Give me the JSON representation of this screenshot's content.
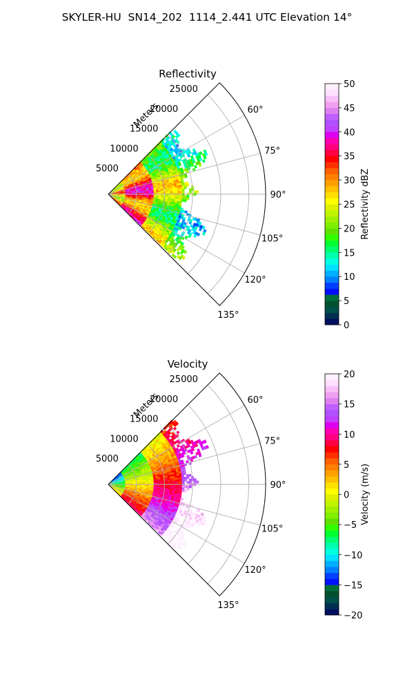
{
  "suptitle": "SKYLER-HU  SN14_202  1114_2.441 UTC Elevation 14°",
  "chart_data": [
    {
      "type": "heatmap",
      "projection": "polar-sector",
      "title": "Reflectivity",
      "radial_label": "Meters",
      "radial_ticks": [
        5000,
        10000,
        15000,
        20000,
        25000
      ],
      "radial_tick_labels": [
        "5000",
        "10000",
        "15000",
        "20000",
        "25000"
      ],
      "rlim": [
        0,
        28000
      ],
      "angle_ticks_deg": [
        60,
        75,
        90,
        105,
        120,
        135
      ],
      "angle_tick_labels": [
        "60°",
        "75°",
        "90°",
        "105°",
        "120°",
        "135°"
      ],
      "angle_range_deg": [
        45,
        135
      ],
      "grid": true,
      "field_extent_m": {
        "min": 0,
        "max": 19000
      },
      "value_description_by_range": [
        {
          "range_m": [
            0,
            3000
          ],
          "value_dbz": 27
        },
        {
          "range_m": [
            3000,
            8000
          ],
          "value_dbz": 33
        },
        {
          "range_m": [
            8000,
            13000
          ],
          "value_dbz": 22
        },
        {
          "range_m": [
            13000,
            19000
          ],
          "value_dbz": 17
        }
      ],
      "colorbar": {
        "label": "Reflectivity dBZ",
        "min": 0,
        "max": 50,
        "ticks": [
          0,
          5,
          10,
          15,
          20,
          25,
          30,
          35,
          40,
          45,
          50
        ],
        "tick_labels": [
          "0",
          "5",
          "10",
          "15",
          "20",
          "25",
          "30",
          "35",
          "40",
          "45",
          "50"
        ],
        "colors": [
          "#001060",
          "#003050",
          "#00504a",
          "#005030",
          "#00703a",
          "#0010ff",
          "#0040ff",
          "#0080ff",
          "#00b0ff",
          "#00e0ff",
          "#00ffe0",
          "#00ffb0",
          "#00ff70",
          "#00ff30",
          "#30ff00",
          "#60e000",
          "#80ef00",
          "#a0f000",
          "#c0f500",
          "#e0f000",
          "#ffff00",
          "#ffe000",
          "#ffc000",
          "#ffa000",
          "#ff8000",
          "#ff6000",
          "#ff3000",
          "#ff0000",
          "#ff0040",
          "#ff0080",
          "#ff00b0",
          "#e000f0",
          "#c040ff",
          "#b050ff",
          "#c060ff",
          "#e080f0",
          "#f0a0f0",
          "#f8c0f8",
          "#ffe0ff",
          "#fff0ff"
        ]
      }
    },
    {
      "type": "heatmap",
      "projection": "polar-sector",
      "title": "Velocity",
      "radial_label": "Meters",
      "radial_ticks": [
        5000,
        10000,
        15000,
        20000,
        25000
      ],
      "radial_tick_labels": [
        "5000",
        "10000",
        "15000",
        "20000",
        "25000"
      ],
      "rlim": [
        0,
        28000
      ],
      "angle_ticks_deg": [
        60,
        75,
        90,
        105,
        120,
        135
      ],
      "angle_tick_labels": [
        "60°",
        "75°",
        "90°",
        "105°",
        "120°",
        "135°"
      ],
      "angle_range_deg": [
        45,
        135
      ],
      "grid": true,
      "field_extent_m": {
        "min": 0,
        "max": 19000
      },
      "value_description_by_range": [
        {
          "range_m": [
            0,
            3000
          ],
          "value_ms": -6
        },
        {
          "range_m": [
            3000,
            8000
          ],
          "value_ms": 1
        },
        {
          "range_m": [
            8000,
            13000
          ],
          "value_ms": 8
        },
        {
          "range_m": [
            13000,
            19000
          ],
          "value_ms": 15
        }
      ],
      "colorbar": {
        "label": "Velocity (m/s)",
        "min": -20,
        "max": 20,
        "ticks": [
          -20,
          -15,
          -10,
          -5,
          0,
          5,
          10,
          15,
          20
        ],
        "tick_labels": [
          "−20",
          "−15",
          "−10",
          "−5",
          "0",
          "5",
          "10",
          "15",
          "20"
        ],
        "colors": [
          "#001060",
          "#003050",
          "#00504a",
          "#005030",
          "#00703a",
          "#0010ff",
          "#0040ff",
          "#0080ff",
          "#00b0ff",
          "#00e0ff",
          "#00ffe0",
          "#00ffb0",
          "#00ff70",
          "#00ff30",
          "#30ff00",
          "#60e000",
          "#80ef00",
          "#a0f000",
          "#c0f500",
          "#e0f000",
          "#ffff00",
          "#ffe000",
          "#ffc000",
          "#ffa000",
          "#ff8000",
          "#ff6000",
          "#ff3000",
          "#ff0000",
          "#ff0040",
          "#ff0080",
          "#ff00b0",
          "#e000f0",
          "#c040ff",
          "#b050ff",
          "#c060ff",
          "#e080f0",
          "#f0a0f0",
          "#f8c0f8",
          "#ffe0ff",
          "#fff0ff"
        ]
      }
    }
  ]
}
